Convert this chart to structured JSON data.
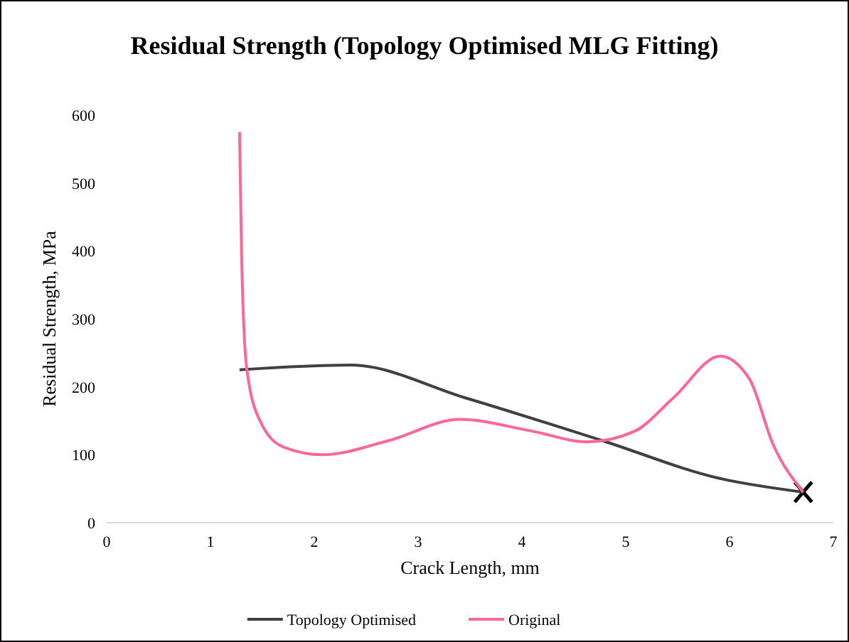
{
  "chart_data": {
    "type": "line",
    "title": "Residual Strength (Topology Optimised MLG Fitting)",
    "xlabel": "Crack Length, mm",
    "ylabel": "Residual Strength, MPa",
    "xlim": [
      0,
      7
    ],
    "xticks": [
      0,
      1,
      2,
      3,
      4,
      5,
      6,
      7
    ],
    "ylim": [
      0,
      600
    ],
    "yticks": [
      0,
      100,
      200,
      300,
      400,
      500,
      600
    ],
    "grid": false,
    "legend": "bottom",
    "marker": "none",
    "line_style": "solid",
    "series": [
      {
        "name": "Topology Optimised",
        "color": "#404040",
        "x": [
          1.28,
          2.35,
          3.45,
          4.77,
          5.91,
          6.71
        ],
        "values": [
          225,
          232,
          184,
          121,
          65,
          45
        ]
      },
      {
        "name": "Original",
        "color": "#ff6699",
        "x": [
          1.28,
          1.3,
          1.35,
          1.48,
          1.71,
          2.08,
          2.72,
          3.4,
          4.09,
          4.63,
          5.09,
          5.46,
          5.91,
          6.19,
          6.42,
          6.71
        ],
        "values": [
          575,
          393,
          226,
          149,
          111,
          100,
          121,
          152,
          135,
          119,
          135,
          184,
          245,
          212,
          115,
          45
        ]
      }
    ]
  }
}
